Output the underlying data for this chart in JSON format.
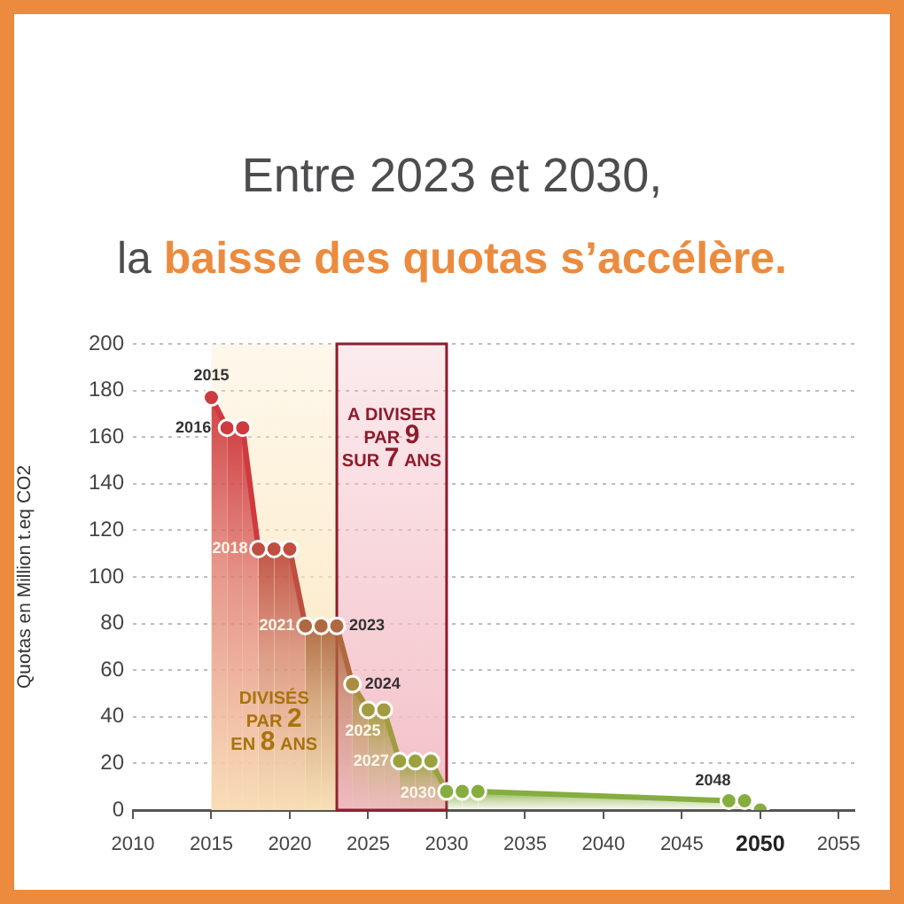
{
  "chart_data": {
    "type": "area",
    "title": "Entre 2023 et 2030,",
    "subtitle": "la baisse des quotas s’accélère.",
    "ylabel": "Quotas en Million t.eq CO2",
    "x": [
      2015,
      2016,
      2017,
      2018,
      2019,
      2020,
      2021,
      2022,
      2023,
      2024,
      2025,
      2026,
      2027,
      2028,
      2029,
      2030,
      2031,
      2032,
      2048,
      2049,
      2050
    ],
    "values": [
      177,
      164,
      164,
      112,
      112,
      112,
      79,
      79,
      79,
      54,
      43,
      43,
      21,
      21,
      21,
      8,
      8,
      8,
      4,
      4,
      0
    ],
    "colors": [
      "#cf3a3e",
      "#cf3a3e",
      "#cf3a3e",
      "#bf4e40",
      "#bf4e40",
      "#bf4e40",
      "#b0693f",
      "#b0693f",
      "#b0693f",
      "#aa8d3e",
      "#a39b3f",
      "#a39b3f",
      "#9aa23f",
      "#9aa23f",
      "#9aa23f",
      "#86ad3f",
      "#86ad3f",
      "#86ad3f",
      "#86ad3f",
      "#86ad3f",
      "#86ad3f"
    ],
    "xlim": [
      2010,
      2056
    ],
    "xticks": [
      2010,
      2015,
      2020,
      2025,
      2030,
      2035,
      2040,
      2045,
      2050,
      2055
    ],
    "ylim": [
      0,
      200
    ],
    "yticks": [
      0,
      20,
      40,
      60,
      80,
      100,
      120,
      140,
      160,
      180,
      200
    ],
    "grid": "y",
    "marker": "circle",
    "line_style": "solid",
    "bands": [
      {
        "axis": "x",
        "from": 2015,
        "to": 2023,
        "label": "DIVISÉS PAR 2 EN 8 ANS",
        "color": "#fbe6bd"
      },
      {
        "axis": "x",
        "from": 2023,
        "to": 2030,
        "label": "A DIVISER PAR 9 SUR 7 ANS",
        "color": "#f3bfc7"
      }
    ],
    "annotations": [
      {
        "text": "2015",
        "x": 2015,
        "y": 177
      },
      {
        "text": "2016",
        "x": 2016,
        "y": 164
      },
      {
        "text": "2018",
        "x": 2018,
        "y": 112
      },
      {
        "text": "2021",
        "x": 2021,
        "y": 79
      },
      {
        "text": "2023",
        "x": 2023,
        "y": 79
      },
      {
        "text": "2024",
        "x": 2024,
        "y": 54
      },
      {
        "text": "2025",
        "x": 2025,
        "y": 43
      },
      {
        "text": "2027",
        "x": 2027,
        "y": 21
      },
      {
        "text": "2030",
        "x": 2030,
        "y": 8
      },
      {
        "text": "2048",
        "x": 2048,
        "y": 4
      }
    ]
  }
}
